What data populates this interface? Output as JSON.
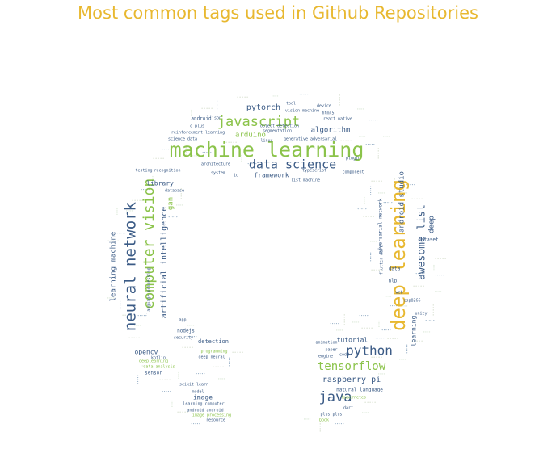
{
  "title": "Most common tags used in Github Repositories",
  "colors": {
    "title": "#e8b830",
    "palette": [
      "#3b5b86",
      "#8bc34a",
      "#e8b830",
      "#a8c8a0",
      "#6d8fb0",
      "#cfd9c6"
    ]
  },
  "chart_data": {
    "type": "wordcloud",
    "title": "Most common tags used in Github Repositories",
    "words": [
      {
        "text": "machine learning",
        "weight": 100,
        "color_index": 1
      },
      {
        "text": "deep learning",
        "weight": 95,
        "color_index": 2
      },
      {
        "text": "neural network",
        "weight": 72,
        "color_index": 0
      },
      {
        "text": "computer vision",
        "weight": 62,
        "color_index": 1
      },
      {
        "text": "javascript",
        "weight": 62,
        "color_index": 1
      },
      {
        "text": "java",
        "weight": 60,
        "color_index": 0
      },
      {
        "text": "python",
        "weight": 58,
        "color_index": 0
      },
      {
        "text": "data science",
        "weight": 55,
        "color_index": 0
      },
      {
        "text": "tensorflow",
        "weight": 50,
        "color_index": 1
      },
      {
        "text": "awesome list",
        "weight": 48,
        "color_index": 0
      },
      {
        "text": "artificial intelligence",
        "weight": 35,
        "color_index": 0
      },
      {
        "text": "pytorch",
        "weight": 34,
        "color_index": 0
      },
      {
        "text": "raspberry pi",
        "weight": 34,
        "color_index": 0
      },
      {
        "text": "algorithm",
        "weight": 32,
        "color_index": 0
      },
      {
        "text": "android studio",
        "weight": 30,
        "color_index": 0
      },
      {
        "text": "arduino",
        "weight": 30,
        "color_index": 1
      },
      {
        "text": "learning machine",
        "weight": 28,
        "color_index": 0
      },
      {
        "text": "library",
        "weight": 26,
        "color_index": 0
      },
      {
        "text": "framework",
        "weight": 26,
        "color_index": 0
      },
      {
        "text": "gan",
        "weight": 26,
        "color_index": 1
      },
      {
        "text": "tutorial",
        "weight": 25,
        "color_index": 0
      },
      {
        "text": "opencv",
        "weight": 24,
        "color_index": 0
      },
      {
        "text": "image",
        "weight": 24,
        "color_index": 0
      },
      {
        "text": "deep",
        "weight": 24,
        "color_index": 0
      },
      {
        "text": "learning",
        "weight": 22,
        "color_index": 0
      },
      {
        "text": "adversarial network",
        "weight": 18,
        "color_index": 0
      },
      {
        "text": "detection",
        "weight": 18,
        "color_index": 0
      },
      {
        "text": "nodejs",
        "weight": 16,
        "color_index": 0
      },
      {
        "text": "natural language",
        "weight": 16,
        "color_index": 0
      },
      {
        "text": "sensor",
        "weight": 15,
        "color_index": 0
      },
      {
        "text": "language processing",
        "weight": 14,
        "color_index": 0
      },
      {
        "text": "nlp",
        "weight": 14,
        "color_index": 0
      },
      {
        "text": "data",
        "weight": 14,
        "color_index": 0
      },
      {
        "text": "android",
        "weight": 14,
        "color_index": 0
      },
      {
        "text": "recognition",
        "weight": 13,
        "color_index": 0
      },
      {
        "text": "dataset",
        "weight": 13,
        "color_index": 0
      },
      {
        "text": "kotlin",
        "weight": 12,
        "color_index": 0
      },
      {
        "text": "scikit learn",
        "weight": 12,
        "color_index": 0
      },
      {
        "text": "esp8266",
        "weight": 12,
        "color_index": 0
      },
      {
        "text": "database",
        "weight": 12,
        "color_index": 0
      },
      {
        "text": "typescript",
        "weight": 12,
        "color_index": 0
      },
      {
        "text": "system",
        "weight": 11,
        "color_index": 0
      },
      {
        "text": "testing",
        "weight": 11,
        "color_index": 0
      },
      {
        "text": "paper",
        "weight": 11,
        "color_index": 0
      },
      {
        "text": "engine",
        "weight": 11,
        "color_index": 0
      },
      {
        "text": "plugin",
        "weight": 11,
        "color_index": 0
      },
      {
        "text": "code",
        "weight": 11,
        "color_index": 0
      },
      {
        "text": "science data",
        "weight": 11,
        "color_index": 0
      },
      {
        "text": "reinforcement learning",
        "weight": 11,
        "color_index": 0
      },
      {
        "text": "animation",
        "weight": 11,
        "color_index": 0
      },
      {
        "text": "deep neural",
        "weight": 11,
        "color_index": 0
      },
      {
        "text": "learning computer",
        "weight": 11,
        "color_index": 0
      },
      {
        "text": "android android",
        "weight": 11,
        "color_index": 0
      },
      {
        "text": "model",
        "weight": 11,
        "color_index": 0
      },
      {
        "text": "resource",
        "weight": 11,
        "color_index": 0
      },
      {
        "text": "json",
        "weight": 10,
        "color_index": 0
      },
      {
        "text": "c plus",
        "weight": 10,
        "color_index": 0
      },
      {
        "text": "segmentation",
        "weight": 10,
        "color_index": 0
      },
      {
        "text": "object detection",
        "weight": 10,
        "color_index": 0
      },
      {
        "text": "generative adversarial",
        "weight": 10,
        "color_index": 0
      },
      {
        "text": "react native",
        "weight": 10,
        "color_index": 0
      },
      {
        "text": "html5",
        "weight": 10,
        "color_index": 0
      },
      {
        "text": "vision machine",
        "weight": 10,
        "color_index": 0
      },
      {
        "text": "device",
        "weight": 10,
        "color_index": 0
      },
      {
        "text": "tool",
        "weight": 10,
        "color_index": 0
      },
      {
        "text": "component",
        "weight": 10,
        "color_index": 0
      },
      {
        "text": "linux",
        "weight": 10,
        "color_index": 0
      },
      {
        "text": "architecture",
        "weight": 10,
        "color_index": 0
      },
      {
        "text": "io",
        "weight": 10,
        "color_index": 0
      },
      {
        "text": "list machine",
        "weight": 9,
        "color_index": 0
      },
      {
        "text": "security",
        "weight": 9,
        "color_index": 0
      },
      {
        "text": "programming",
        "weight": 10,
        "color_index": 1
      },
      {
        "text": "data analysis",
        "weight": 10,
        "color_index": 1
      },
      {
        "text": "plus plus",
        "weight": 10,
        "color_index": 0
      },
      {
        "text": "image processing",
        "weight": 10,
        "color_index": 1
      },
      {
        "text": "kubernetes",
        "weight": 10,
        "color_index": 1
      },
      {
        "text": "deeplearning",
        "weight": 9,
        "color_index": 1
      },
      {
        "text": "web",
        "weight": 9,
        "color_index": 0
      },
      {
        "text": "dart",
        "weight": 9,
        "color_index": 0
      },
      {
        "text": "flutter dart",
        "weight": 9,
        "color_index": 0
      },
      {
        "text": "app",
        "weight": 9,
        "color_index": 0
      },
      {
        "text": "book",
        "weight": 9,
        "color_index": 1
      },
      {
        "text": "unity",
        "weight": 9,
        "color_index": 0
      }
    ]
  }
}
